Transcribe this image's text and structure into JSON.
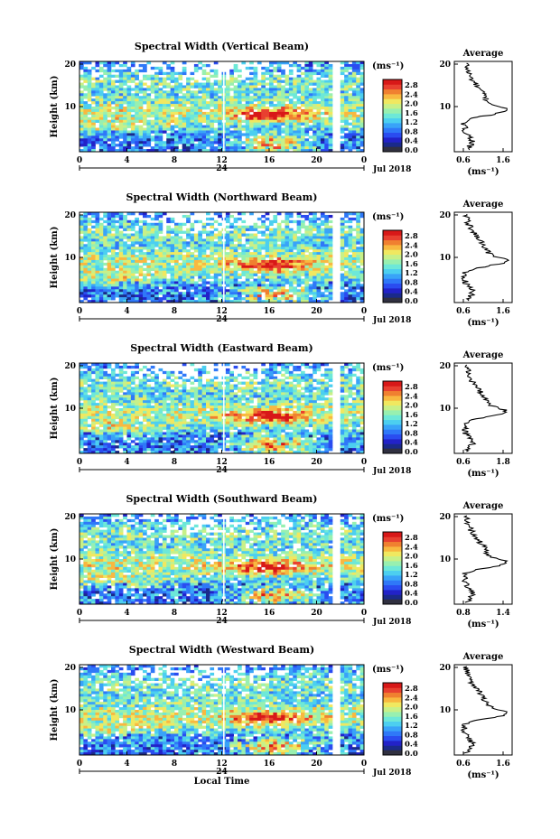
{
  "colors": {
    "palette": [
      "#1a2a8a",
      "#2222c8",
      "#2a4cf0",
      "#2f78f8",
      "#39a3f8",
      "#4ccff0",
      "#6de8d8",
      "#98f0b0",
      "#c8f088",
      "#f0e860",
      "#f8b840",
      "#f08030",
      "#e84030",
      "#d81818"
    ],
    "background": "#ffffff"
  },
  "chart_data": [
    {
      "type": "heatmap",
      "title": "Spectral Width (Vertical Beam)",
      "ylabel": "Height (km)",
      "x_ticks": [
        "0",
        "4",
        "8",
        "12",
        "16",
        "20",
        "0"
      ],
      "y_ticks": [
        "20",
        "10"
      ],
      "date_tick": "24",
      "date_label": "Jul 2018",
      "colorbar": {
        "unit": "(ms⁻¹)",
        "ticks": [
          "2.8",
          "2.4",
          "2.0",
          "1.6",
          "1.2",
          "0.8",
          "0.4",
          "0.0"
        ]
      },
      "average": {
        "title": "Average",
        "xlabel": "(ms⁻¹)",
        "x_ticks": [
          "0.6",
          "1.6"
        ],
        "y_ticks": [
          "20",
          "10"
        ]
      }
    },
    {
      "type": "heatmap",
      "title": "Spectral Width (Northward Beam)",
      "ylabel": "Height (km)",
      "x_ticks": [
        "0",
        "4",
        "8",
        "12",
        "16",
        "20",
        "0"
      ],
      "y_ticks": [
        "20",
        "10"
      ],
      "date_tick": "24",
      "date_label": "Jul 2018",
      "colorbar": {
        "unit": "(ms⁻¹)",
        "ticks": [
          "2.8",
          "2.4",
          "2.0",
          "1.6",
          "1.2",
          "0.8",
          "0.4",
          "0.0"
        ]
      },
      "average": {
        "title": "Average",
        "xlabel": "(ms⁻¹)",
        "x_ticks": [
          "0.6",
          "1.6"
        ],
        "y_ticks": [
          "20",
          "10"
        ]
      }
    },
    {
      "type": "heatmap",
      "title": "Spectral Width (Eastward Beam)",
      "ylabel": "Height (km)",
      "x_ticks": [
        "0",
        "4",
        "8",
        "12",
        "16",
        "20",
        "0"
      ],
      "y_ticks": [
        "20",
        "10"
      ],
      "date_tick": "24",
      "date_label": "Jul 2018",
      "colorbar": {
        "unit": "(ms⁻¹)",
        "ticks": [
          "2.8",
          "2.4",
          "2.0",
          "1.6",
          "1.2",
          "0.8",
          "0.4",
          "0.0"
        ]
      },
      "average": {
        "title": "Average",
        "xlabel": "(ms⁻¹)",
        "x_ticks": [
          "0.6",
          "1.8"
        ],
        "y_ticks": [
          "20",
          "10"
        ]
      }
    },
    {
      "type": "heatmap",
      "title": "Spectral Width (Southward Beam)",
      "ylabel": "Height (km)",
      "x_ticks": [
        "0",
        "4",
        "8",
        "12",
        "16",
        "20",
        "0"
      ],
      "y_ticks": [
        "20",
        "10"
      ],
      "date_tick": "24",
      "date_label": "Jul 2018",
      "colorbar": {
        "unit": "(ms⁻¹)",
        "ticks": [
          "2.8",
          "2.4",
          "2.0",
          "1.6",
          "1.2",
          "0.8",
          "0.4",
          "0.0"
        ]
      },
      "average": {
        "title": "Average",
        "xlabel": "(ms⁻¹)",
        "x_ticks": [
          "0.8",
          "1.4"
        ],
        "y_ticks": [
          "20",
          "10"
        ]
      }
    },
    {
      "type": "heatmap",
      "title": "Spectral Width (Westward Beam)",
      "ylabel": "Height (km)",
      "xlabel": "Local Time",
      "x_ticks": [
        "0",
        "4",
        "8",
        "12",
        "16",
        "20",
        "0"
      ],
      "y_ticks": [
        "20",
        "10"
      ],
      "date_tick": "24",
      "date_label": "Jul 2018",
      "colorbar": {
        "unit": "(ms⁻¹)",
        "ticks": [
          "2.8",
          "2.4",
          "2.0",
          "1.6",
          "1.2",
          "0.8",
          "0.4",
          "0.0"
        ]
      },
      "average": {
        "title": "Average",
        "xlabel": "(ms⁻¹)",
        "x_ticks": [
          "0.6",
          "1.6"
        ],
        "y_ticks": [
          "20",
          "10"
        ]
      }
    }
  ]
}
